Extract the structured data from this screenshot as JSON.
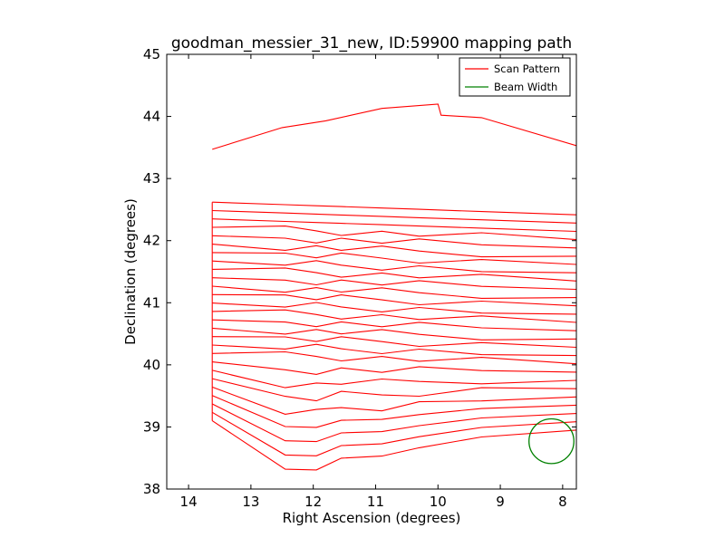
{
  "chart_data": {
    "type": "line",
    "title": "goodman_messier_31_new, ID:59900 mapping path",
    "xlabel": "Right Ascension (degrees)",
    "ylabel": "Declination (degrees)",
    "xlim": [
      14.35,
      7.78
    ],
    "ylim": [
      38,
      45
    ],
    "x_ticks": [
      "14",
      "13",
      "12",
      "11",
      "10",
      "9",
      "8"
    ],
    "y_ticks": [
      "38",
      "39",
      "40",
      "41",
      "42",
      "43",
      "44",
      "45"
    ],
    "grid": false,
    "legend_position": "top-right",
    "legend": [
      {
        "label": "Scan Pattern",
        "color": "#ff0000"
      },
      {
        "label": "Beam Width",
        "color": "#008000"
      }
    ],
    "series": [
      {
        "name": "Scan Pattern",
        "color": "#ff0000",
        "scan_count": 27,
        "ra_start": 13.62,
        "ra_end": 7.78,
        "dec_start_first": 39.1,
        "dec_start_step": 0.1354,
        "dec_end_first": 38.95,
        "dec_end_step": 0.1333,
        "scan_shape": [
          {
            "ra": 13.62,
            "ddec": 0.0
          },
          {
            "ra": 12.45,
            "ddec": -0.75
          },
          {
            "ra": 11.95,
            "ddec": -0.75
          },
          {
            "ra": 11.55,
            "ddec": -0.55
          },
          {
            "ra": 10.9,
            "ddec": -0.5
          },
          {
            "ra": 10.3,
            "ddec": -0.35
          },
          {
            "ra": 9.3,
            "ddec": -0.15
          },
          {
            "ra": 7.78,
            "ddec": 0.0
          }
        ],
        "top_edge": [
          {
            "ra": 13.62,
            "dec": 43.47
          },
          {
            "ra": 12.95,
            "dec": 43.68
          },
          {
            "ra": 12.5,
            "dec": 43.82
          },
          {
            "ra": 11.8,
            "dec": 43.93
          },
          {
            "ra": 10.9,
            "dec": 44.13
          },
          {
            "ra": 10.0,
            "dec": 44.2
          },
          {
            "ra": 9.95,
            "dec": 44.02
          },
          {
            "ra": 9.3,
            "dec": 43.98
          },
          {
            "ra": 7.78,
            "dec": 43.53
          }
        ]
      },
      {
        "name": "Beam Width",
        "color": "#008000",
        "center_ra": 8.18,
        "center_dec": 38.77,
        "radius_deg": 0.36
      }
    ]
  }
}
